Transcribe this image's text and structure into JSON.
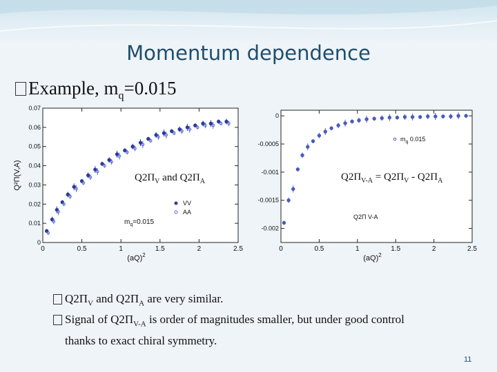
{
  "slide": {
    "title": "Momentum dependence",
    "subtitle_pre": "Example, m",
    "subtitle_sub": "q",
    "subtitle_post": "=0.015",
    "bullet1": {
      "a": "Q2Π",
      "a_sub": "V",
      "b": " and Q2Π",
      "b_sub": "A",
      "c": " are very similar."
    },
    "bullet2": {
      "a": "Signal of Q2Π",
      "a_sub": "V-A",
      "b": " is order of magnitudes smaller, but under good control",
      "c": "thanks to exact chiral symmetry."
    },
    "page_number": "11"
  },
  "overlays": {
    "left_a": "Q2Π",
    "left_a_sub": "V",
    "left_b": " and Q2Π",
    "left_b_sub": "A",
    "right_a": "Q2Π",
    "right_a_sub": "V-A",
    "right_b": " = Q2Π",
    "right_b_sub": "V",
    "right_c": " - Q2Π",
    "right_c_sub": "A"
  },
  "chart_data": [
    {
      "type": "scatter",
      "title": "",
      "xlabel": "(aQ)",
      "xlabel_sup": "2",
      "ylabel": "Q²Π(V,A)",
      "xlim": [
        0,
        2.5
      ],
      "ylim": [
        0,
        0.07
      ],
      "xticks": [
        "0",
        "0.5",
        "1",
        "1.5",
        "2",
        "2.5"
      ],
      "yticks": [
        "0",
        "0.01",
        "0.02",
        "0.03",
        "0.04",
        "0.05",
        "0.06",
        "0.07"
      ],
      "legend": [
        "VV",
        "AA"
      ],
      "annotation": "m",
      "annotation_sub": "q",
      "annotation_post": "=0.015",
      "grid": false,
      "series": [
        {
          "name": "VV",
          "color": "#2a3a9a",
          "x": [
            0.05,
            0.12,
            0.18,
            0.25,
            0.32,
            0.4,
            0.5,
            0.58,
            0.67,
            0.76,
            0.85,
            0.95,
            1.05,
            1.15,
            1.25,
            1.35,
            1.45,
            1.55,
            1.65,
            1.75,
            1.85,
            1.95,
            2.05,
            2.15,
            2.25,
            2.35
          ],
          "y": [
            0.006,
            0.012,
            0.017,
            0.021,
            0.025,
            0.029,
            0.032,
            0.035,
            0.038,
            0.041,
            0.043,
            0.046,
            0.048,
            0.05,
            0.052,
            0.054,
            0.056,
            0.057,
            0.058,
            0.059,
            0.06,
            0.061,
            0.062,
            0.062,
            0.063,
            0.063
          ]
        },
        {
          "name": "AA",
          "color": "#5a6ad0",
          "x": [
            0.07,
            0.14,
            0.2,
            0.27,
            0.35,
            0.43,
            0.52,
            0.61,
            0.7,
            0.79,
            0.88,
            0.98,
            1.08,
            1.18,
            1.28,
            1.38,
            1.48,
            1.58,
            1.68,
            1.78,
            1.88,
            1.98,
            2.08,
            2.18,
            2.28,
            2.38
          ],
          "y": [
            0.005,
            0.011,
            0.016,
            0.02,
            0.024,
            0.028,
            0.031,
            0.034,
            0.037,
            0.04,
            0.042,
            0.045,
            0.047,
            0.049,
            0.051,
            0.053,
            0.055,
            0.056,
            0.057,
            0.058,
            0.059,
            0.06,
            0.061,
            0.061,
            0.062,
            0.062
          ]
        }
      ]
    },
    {
      "type": "scatter",
      "title": "",
      "xlabel": "(aQ)",
      "xlabel_sup": "2",
      "ylabel": "",
      "xlim": [
        0,
        2.5
      ],
      "ylim": [
        -0.00225,
        0.0001
      ],
      "xticks": [
        "0",
        "0.5",
        "1",
        "1.5",
        "2",
        "2.5"
      ],
      "yticks": [
        "0",
        "-0.0005",
        "-0.001",
        "-0.0015",
        "-0.002"
      ],
      "ytick_values": [
        0,
        -0.0005,
        -0.001,
        -0.0015,
        -0.002
      ],
      "legend": [
        "Q2Π V-A"
      ],
      "annotation": "m",
      "annotation_sub": "q",
      "annotation_post": "0.015",
      "grid": false,
      "series": [
        {
          "name": "Q2Π V-A",
          "color": "#4a5ac0",
          "x": [
            0.04,
            0.1,
            0.16,
            0.22,
            0.28,
            0.35,
            0.42,
            0.5,
            0.58,
            0.66,
            0.75,
            0.84,
            0.93,
            1.02,
            1.12,
            1.22,
            1.32,
            1.42,
            1.52,
            1.62,
            1.72,
            1.82,
            1.92,
            2.02,
            2.12,
            2.22,
            2.32,
            2.42
          ],
          "y": [
            -0.0019,
            -0.0015,
            -0.0013,
            -0.00095,
            -0.0007,
            -0.00055,
            -0.00045,
            -0.00035,
            -0.00028,
            -0.00022,
            -0.00017,
            -0.00013,
            -0.0001,
            -8e-05,
            -6e-05,
            -5e-05,
            -4e-05,
            -3e-05,
            -3e-05,
            -2e-05,
            -2e-05,
            -2e-05,
            -1e-05,
            -1e-05,
            -1e-05,
            -1e-05,
            0,
            0
          ]
        }
      ]
    }
  ]
}
